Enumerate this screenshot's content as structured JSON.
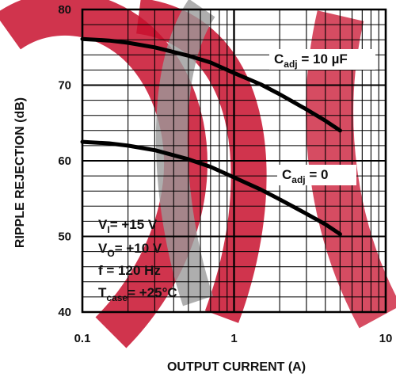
{
  "chart_data": {
    "type": "line",
    "title": "",
    "xlabel": "OUTPUT CURRENT (A)",
    "ylabel": "RIPPLE REJECTION (dB)",
    "xscale": "log",
    "xlim": [
      0.1,
      10
    ],
    "ylim": [
      40,
      80
    ],
    "xticks": [
      "0.1",
      "1",
      "10"
    ],
    "yticks": [
      "40",
      "50",
      "60",
      "70",
      "80"
    ],
    "grid": true,
    "colors": {
      "curve": "#000000",
      "grid": "#000000",
      "watermark_red": "#c8102e",
      "watermark_gray": "#9a9a9a"
    },
    "series": [
      {
        "label_main": "C",
        "label_sub": "adj",
        "label_rest": " = 10 µF",
        "x": [
          0.1,
          0.15,
          0.2,
          0.3,
          0.5,
          0.7,
          1.0,
          1.5,
          2.0,
          3.0,
          4.0,
          5.0
        ],
        "y": [
          76.1,
          75.9,
          75.6,
          75.0,
          73.9,
          73.0,
          71.6,
          70.1,
          68.8,
          66.8,
          65.3,
          64.0
        ]
      },
      {
        "label_main": "C",
        "label_sub": "adj",
        "label_rest": " = 0",
        "x": [
          0.1,
          0.15,
          0.2,
          0.3,
          0.5,
          0.7,
          1.0,
          1.5,
          2.0,
          3.0,
          4.0,
          5.0
        ],
        "y": [
          62.5,
          62.3,
          62.0,
          61.4,
          60.2,
          59.2,
          57.8,
          56.2,
          54.9,
          53.0,
          51.6,
          50.3
        ]
      }
    ],
    "conditions": [
      {
        "main": "V",
        "sub": "I",
        "rest": "= +15 V"
      },
      {
        "main": "V",
        "sub": "O",
        "rest": "= +10 V"
      },
      {
        "main": "f = 120 Hz",
        "sub": "",
        "rest": ""
      },
      {
        "main": "T",
        "sub": "case",
        "rest": "= +25°C"
      }
    ]
  }
}
